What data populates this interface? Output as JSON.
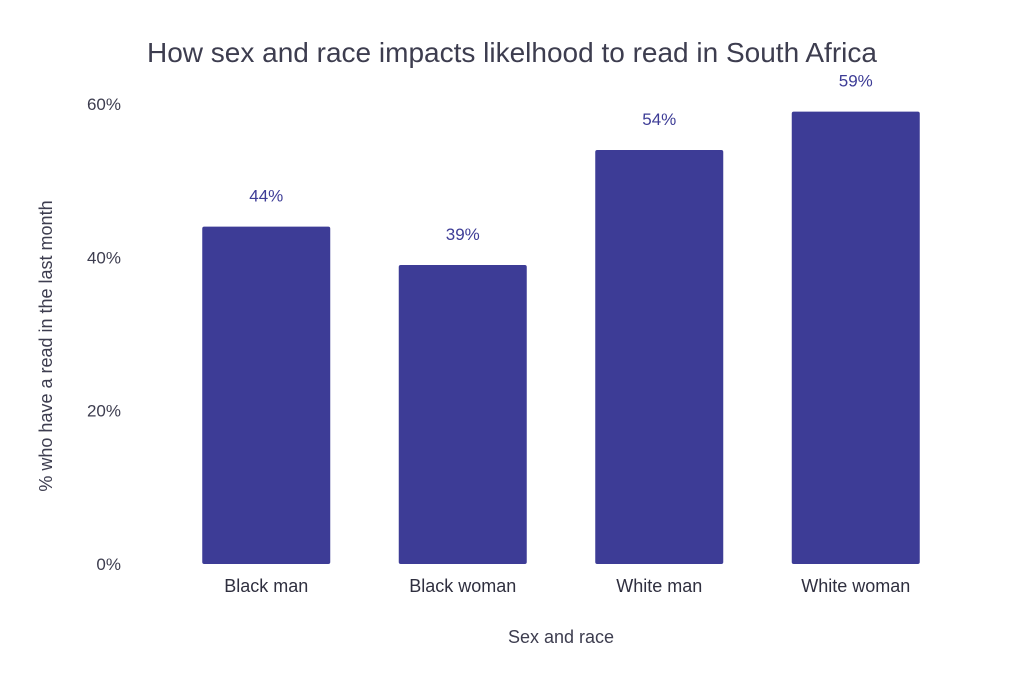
{
  "chart_data": {
    "type": "bar",
    "title": "How sex and race impacts likelhood to read in South Africa",
    "xlabel": "Sex and race",
    "ylabel": "% who have a read in the last month",
    "categories": [
      "Black man",
      "Black woman",
      "White man",
      "White woman"
    ],
    "values": [
      44,
      39,
      54,
      59
    ],
    "value_labels": [
      "44%",
      "39%",
      "54%",
      "59%"
    ],
    "ylim": [
      0,
      60
    ],
    "yticks": [
      0,
      20,
      40,
      60
    ],
    "ytick_labels": [
      "0%",
      "20%",
      "40%",
      "60%"
    ],
    "grid": false,
    "legend": "none",
    "colors": {
      "bar": "#3d3c96",
      "data_label": "#3d3c96",
      "text": "#3d3d4f"
    }
  }
}
